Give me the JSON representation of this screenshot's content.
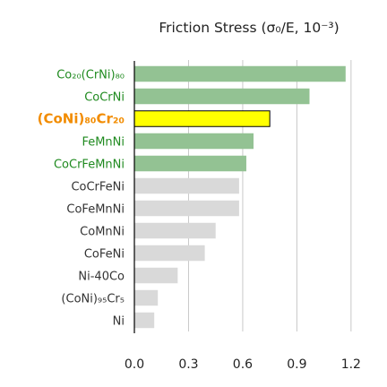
{
  "chart_data": {
    "type": "bar",
    "orientation": "horizontal",
    "title": "Friction Stress (σ₀/E, 10⁻³)",
    "xlabel": "",
    "ylabel": "",
    "xlim": [
      0,
      1.3
    ],
    "xticks": [
      "0.0",
      "0.3",
      "0.6",
      "0.9",
      "1.2"
    ],
    "xtick_values": [
      0,
      0.3,
      0.6,
      0.9,
      1.2
    ],
    "grid": true,
    "categories": [
      {
        "label": "Co₂₀(CrNi)₈₀",
        "value": 1.17,
        "color": "#93c293",
        "label_color": "#1f8a1f",
        "bold": false
      },
      {
        "label": "CoCrNi",
        "value": 0.97,
        "color": "#93c293",
        "label_color": "#1f8a1f",
        "bold": false
      },
      {
        "label": "(CoNi)₈₀Cr₂₀",
        "value": 0.75,
        "color": "#ffff00",
        "label_color": "#f28c00",
        "bold": true
      },
      {
        "label": "FeMnNi",
        "value": 0.66,
        "color": "#93c293",
        "label_color": "#1f8a1f",
        "bold": false
      },
      {
        "label": "CoCrFeMnNi",
        "value": 0.62,
        "color": "#93c293",
        "label_color": "#1f8a1f",
        "bold": false
      },
      {
        "label": "CoCrFeNi",
        "value": 0.58,
        "color": "#d9d9d9",
        "label_color": "#333333",
        "bold": false
      },
      {
        "label": "CoFeMnNi",
        "value": 0.58,
        "color": "#d9d9d9",
        "label_color": "#333333",
        "bold": false
      },
      {
        "label": "CoMnNi",
        "value": 0.45,
        "color": "#d9d9d9",
        "label_color": "#333333",
        "bold": false
      },
      {
        "label": "CoFeNi",
        "value": 0.39,
        "color": "#d9d9d9",
        "label_color": "#333333",
        "bold": false
      },
      {
        "label": "Ni-40Co",
        "value": 0.24,
        "color": "#d9d9d9",
        "label_color": "#333333",
        "bold": false
      },
      {
        "label": "(CoNi)₉₅Cr₅",
        "value": 0.13,
        "color": "#d9d9d9",
        "label_color": "#333333",
        "bold": false
      },
      {
        "label": "Ni",
        "value": 0.11,
        "color": "#d9d9d9",
        "label_color": "#333333",
        "bold": false
      }
    ],
    "highlight_edge_color": "#000000",
    "grid_color": "#c8c8c8",
    "axis_color": "#000000"
  }
}
